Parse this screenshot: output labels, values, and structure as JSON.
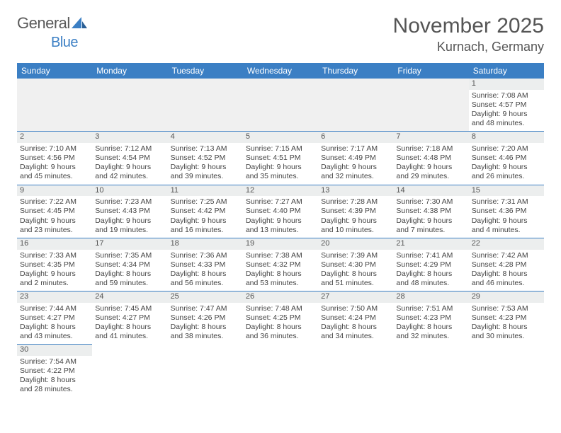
{
  "logo": {
    "general": "General",
    "blue": "Blue"
  },
  "title": "November 2025",
  "location": "Kurnach, Germany",
  "colors": {
    "header_bg": "#3b7fc4",
    "daynum_bg": "#eceeee",
    "text": "#444444"
  },
  "table": {
    "type": "calendar",
    "columns": [
      "Sunday",
      "Monday",
      "Tuesday",
      "Wednesday",
      "Thursday",
      "Friday",
      "Saturday"
    ],
    "weeks": [
      [
        null,
        null,
        null,
        null,
        null,
        null,
        {
          "n": "1",
          "sr": "7:08 AM",
          "ss": "4:57 PM",
          "dl": "9 hours and 48 minutes."
        }
      ],
      [
        {
          "n": "2",
          "sr": "7:10 AM",
          "ss": "4:56 PM",
          "dl": "9 hours and 45 minutes."
        },
        {
          "n": "3",
          "sr": "7:12 AM",
          "ss": "4:54 PM",
          "dl": "9 hours and 42 minutes."
        },
        {
          "n": "4",
          "sr": "7:13 AM",
          "ss": "4:52 PM",
          "dl": "9 hours and 39 minutes."
        },
        {
          "n": "5",
          "sr": "7:15 AM",
          "ss": "4:51 PM",
          "dl": "9 hours and 35 minutes."
        },
        {
          "n": "6",
          "sr": "7:17 AM",
          "ss": "4:49 PM",
          "dl": "9 hours and 32 minutes."
        },
        {
          "n": "7",
          "sr": "7:18 AM",
          "ss": "4:48 PM",
          "dl": "9 hours and 29 minutes."
        },
        {
          "n": "8",
          "sr": "7:20 AM",
          "ss": "4:46 PM",
          "dl": "9 hours and 26 minutes."
        }
      ],
      [
        {
          "n": "9",
          "sr": "7:22 AM",
          "ss": "4:45 PM",
          "dl": "9 hours and 23 minutes."
        },
        {
          "n": "10",
          "sr": "7:23 AM",
          "ss": "4:43 PM",
          "dl": "9 hours and 19 minutes."
        },
        {
          "n": "11",
          "sr": "7:25 AM",
          "ss": "4:42 PM",
          "dl": "9 hours and 16 minutes."
        },
        {
          "n": "12",
          "sr": "7:27 AM",
          "ss": "4:40 PM",
          "dl": "9 hours and 13 minutes."
        },
        {
          "n": "13",
          "sr": "7:28 AM",
          "ss": "4:39 PM",
          "dl": "9 hours and 10 minutes."
        },
        {
          "n": "14",
          "sr": "7:30 AM",
          "ss": "4:38 PM",
          "dl": "9 hours and 7 minutes."
        },
        {
          "n": "15",
          "sr": "7:31 AM",
          "ss": "4:36 PM",
          "dl": "9 hours and 4 minutes."
        }
      ],
      [
        {
          "n": "16",
          "sr": "7:33 AM",
          "ss": "4:35 PM",
          "dl": "9 hours and 2 minutes."
        },
        {
          "n": "17",
          "sr": "7:35 AM",
          "ss": "4:34 PM",
          "dl": "8 hours and 59 minutes."
        },
        {
          "n": "18",
          "sr": "7:36 AM",
          "ss": "4:33 PM",
          "dl": "8 hours and 56 minutes."
        },
        {
          "n": "19",
          "sr": "7:38 AM",
          "ss": "4:32 PM",
          "dl": "8 hours and 53 minutes."
        },
        {
          "n": "20",
          "sr": "7:39 AM",
          "ss": "4:30 PM",
          "dl": "8 hours and 51 minutes."
        },
        {
          "n": "21",
          "sr": "7:41 AM",
          "ss": "4:29 PM",
          "dl": "8 hours and 48 minutes."
        },
        {
          "n": "22",
          "sr": "7:42 AM",
          "ss": "4:28 PM",
          "dl": "8 hours and 46 minutes."
        }
      ],
      [
        {
          "n": "23",
          "sr": "7:44 AM",
          "ss": "4:27 PM",
          "dl": "8 hours and 43 minutes."
        },
        {
          "n": "24",
          "sr": "7:45 AM",
          "ss": "4:27 PM",
          "dl": "8 hours and 41 minutes."
        },
        {
          "n": "25",
          "sr": "7:47 AM",
          "ss": "4:26 PM",
          "dl": "8 hours and 38 minutes."
        },
        {
          "n": "26",
          "sr": "7:48 AM",
          "ss": "4:25 PM",
          "dl": "8 hours and 36 minutes."
        },
        {
          "n": "27",
          "sr": "7:50 AM",
          "ss": "4:24 PM",
          "dl": "8 hours and 34 minutes."
        },
        {
          "n": "28",
          "sr": "7:51 AM",
          "ss": "4:23 PM",
          "dl": "8 hours and 32 minutes."
        },
        {
          "n": "29",
          "sr": "7:53 AM",
          "ss": "4:23 PM",
          "dl": "8 hours and 30 minutes."
        }
      ],
      [
        {
          "n": "30",
          "sr": "7:54 AM",
          "ss": "4:22 PM",
          "dl": "8 hours and 28 minutes."
        },
        null,
        null,
        null,
        null,
        null,
        null
      ]
    ]
  },
  "labels": {
    "sunrise": "Sunrise: ",
    "sunset": "Sunset: ",
    "daylight": "Daylight: "
  }
}
